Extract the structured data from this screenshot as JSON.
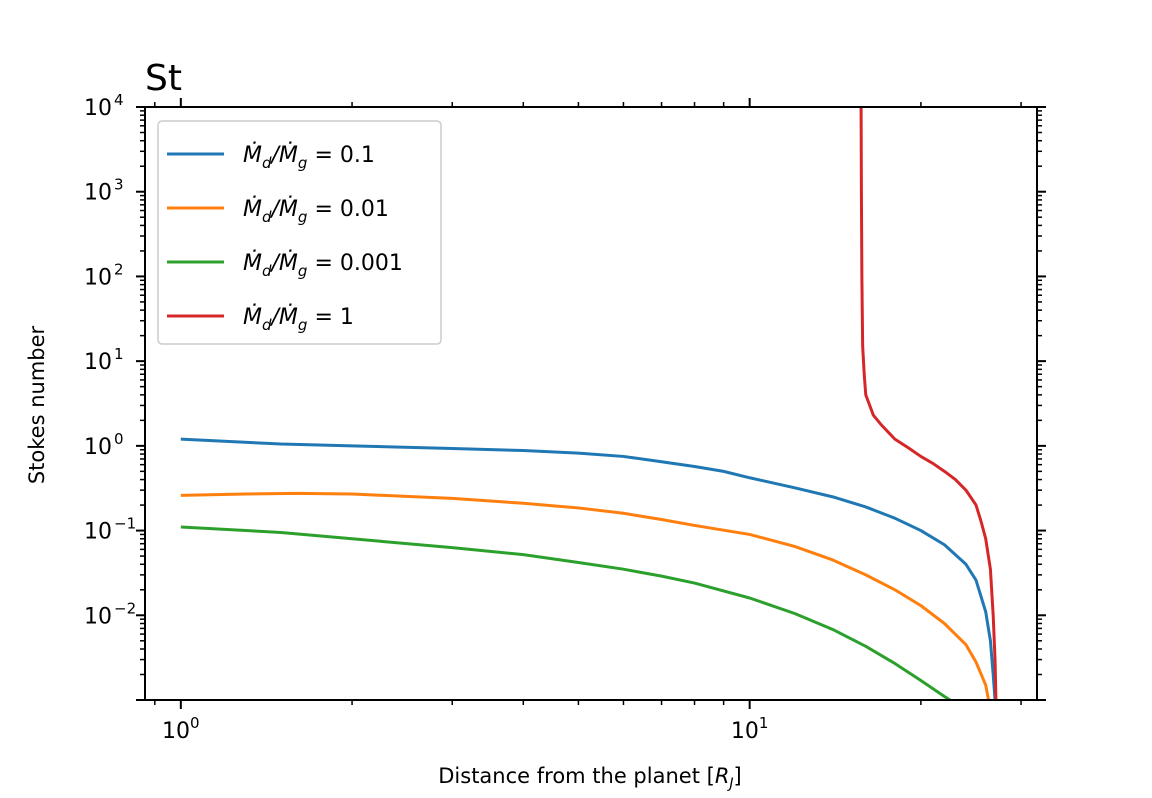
{
  "chart_data": {
    "type": "line",
    "title": "St",
    "xlabel": "Distance from the planet [R_J]",
    "ylabel": "Stokes number",
    "xscale": "log",
    "yscale": "log",
    "xlim": [
      0.865,
      32
    ],
    "ylim": [
      0.001,
      10000
    ],
    "grid": false,
    "legend_position": "top-left",
    "x_ticks": [
      {
        "value": 1,
        "base": "10",
        "exp": "0"
      },
      {
        "value": 10,
        "base": "10",
        "exp": "1"
      }
    ],
    "y_ticks": [
      {
        "value": 10000,
        "base": "10",
        "exp": "4"
      },
      {
        "value": 1000,
        "base": "10",
        "exp": "3"
      },
      {
        "value": 100,
        "base": "10",
        "exp": "2"
      },
      {
        "value": 10,
        "base": "10",
        "exp": "1"
      },
      {
        "value": 1,
        "base": "10",
        "exp": "0"
      },
      {
        "value": 0.1,
        "base": "10",
        "exp": "−1"
      },
      {
        "value": 0.01,
        "base": "10",
        "exp": "−2"
      }
    ],
    "series": [
      {
        "name": "Ṁd/Ṁg = 0.1",
        "legend_value": "0.1",
        "color": "#1f77b4",
        "points": [
          [
            1,
            1.2
          ],
          [
            1.5,
            1.05
          ],
          [
            2,
            1.0
          ],
          [
            3,
            0.93
          ],
          [
            4,
            0.88
          ],
          [
            5,
            0.82
          ],
          [
            6,
            0.75
          ],
          [
            7,
            0.65
          ],
          [
            8,
            0.57
          ],
          [
            9,
            0.5
          ],
          [
            10,
            0.42
          ],
          [
            12,
            0.32
          ],
          [
            14,
            0.25
          ],
          [
            16,
            0.19
          ],
          [
            18,
            0.14
          ],
          [
            20,
            0.1
          ],
          [
            22,
            0.068
          ],
          [
            24,
            0.04
          ],
          [
            25,
            0.026
          ],
          [
            26,
            0.011
          ],
          [
            26.5,
            0.005
          ],
          [
            26.8,
            0.002
          ],
          [
            27,
            0.001
          ]
        ]
      },
      {
        "name": "Ṁd/Ṁg = 0.01",
        "legend_value": "0.01",
        "color": "#ff7f0e",
        "points": [
          [
            1,
            0.26
          ],
          [
            1.3,
            0.27
          ],
          [
            1.6,
            0.275
          ],
          [
            2,
            0.27
          ],
          [
            3,
            0.24
          ],
          [
            4,
            0.21
          ],
          [
            5,
            0.185
          ],
          [
            6,
            0.16
          ],
          [
            7,
            0.135
          ],
          [
            8,
            0.115
          ],
          [
            10,
            0.09
          ],
          [
            12,
            0.065
          ],
          [
            14,
            0.045
          ],
          [
            16,
            0.03
          ],
          [
            18,
            0.02
          ],
          [
            20,
            0.013
          ],
          [
            22,
            0.008
          ],
          [
            24,
            0.0045
          ],
          [
            25,
            0.0028
          ],
          [
            26,
            0.0015
          ],
          [
            26.3,
            0.001
          ]
        ]
      },
      {
        "name": "Ṁd/Ṁg = 0.001",
        "legend_value": "0.001",
        "color": "#2ca02c",
        "points": [
          [
            1,
            0.11
          ],
          [
            1.5,
            0.095
          ],
          [
            2,
            0.08
          ],
          [
            3,
            0.063
          ],
          [
            4,
            0.052
          ],
          [
            5,
            0.042
          ],
          [
            6,
            0.035
          ],
          [
            7,
            0.029
          ],
          [
            8,
            0.024
          ],
          [
            10,
            0.016
          ],
          [
            12,
            0.0105
          ],
          [
            14,
            0.0068
          ],
          [
            16,
            0.0043
          ],
          [
            18,
            0.0027
          ],
          [
            20,
            0.0017
          ],
          [
            22,
            0.0011
          ],
          [
            22.5,
            0.001
          ]
        ]
      },
      {
        "name": "Ṁd/Ṁg = 1",
        "legend_value": "1",
        "color": "#d62728",
        "points": [
          [
            15.7,
            10000
          ],
          [
            15.72,
            1000
          ],
          [
            15.75,
            100
          ],
          [
            15.8,
            15
          ],
          [
            15.9,
            7
          ],
          [
            16,
            4
          ],
          [
            16.5,
            2.3
          ],
          [
            17,
            1.8
          ],
          [
            18,
            1.2
          ],
          [
            19,
            0.95
          ],
          [
            20,
            0.75
          ],
          [
            21,
            0.62
          ],
          [
            22,
            0.5
          ],
          [
            23,
            0.4
          ],
          [
            24,
            0.3
          ],
          [
            25,
            0.2
          ],
          [
            25.5,
            0.13
          ],
          [
            26,
            0.08
          ],
          [
            26.5,
            0.035
          ],
          [
            26.8,
            0.01
          ],
          [
            27,
            0.003
          ],
          [
            27.1,
            0.001
          ]
        ]
      }
    ]
  }
}
